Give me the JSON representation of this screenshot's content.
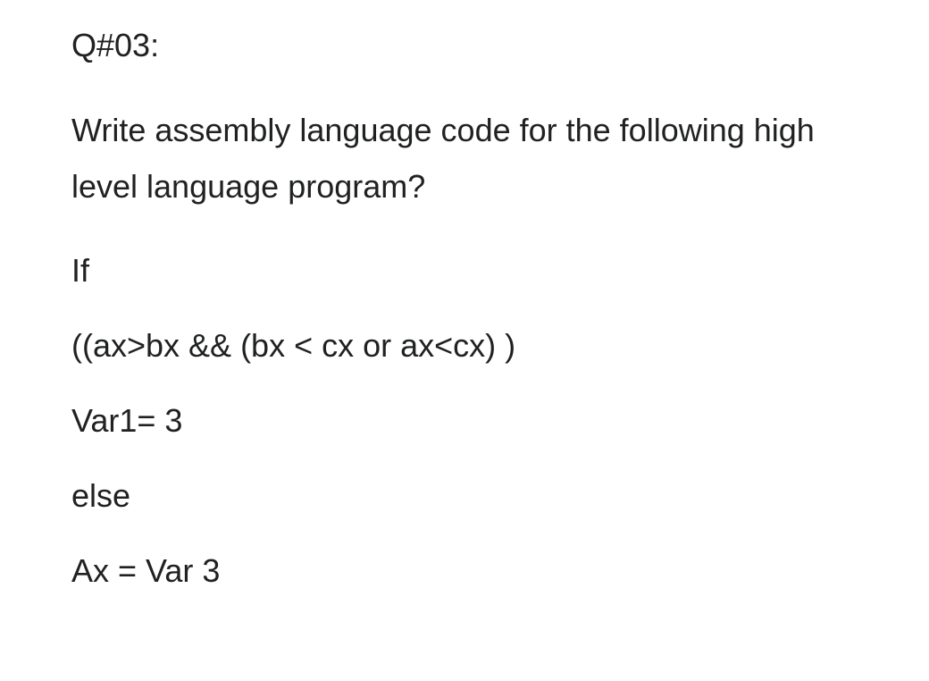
{
  "document": {
    "text_color": "#202122",
    "background_color": "#ffffff",
    "font_family": "Arial, Helvetica, sans-serif",
    "font_size_pt": 27,
    "lines": {
      "question_label": "Q#03:",
      "question_text": "Write assembly language code for the following high level language program?",
      "if_keyword": "If",
      "condition": "((ax>bx && (bx < cx or ax<cx) )",
      "true_branch": "Var1= 3",
      "else_keyword": "else",
      "false_branch": "Ax = Var 3"
    }
  }
}
